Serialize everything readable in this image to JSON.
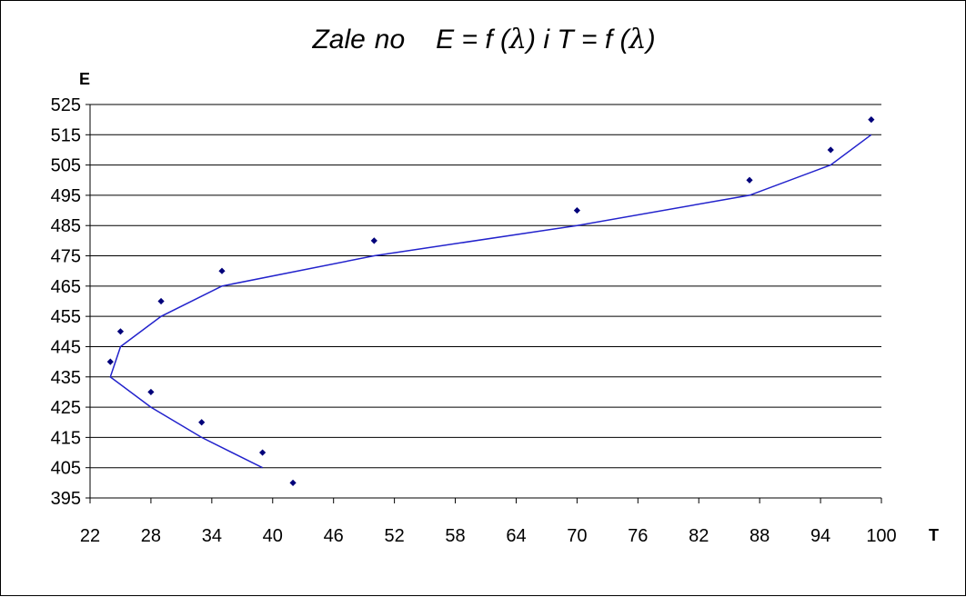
{
  "chart_data": {
    "type": "scatter",
    "title": {
      "part1": "Zale",
      "part2": "no",
      "part3": "E = f (",
      "lambda1": "λ",
      "part4": ") i T =  f (",
      "lambda2": "λ",
      "part5": ")"
    },
    "xlabel": "T",
    "ylabel": "E",
    "xlim": [
      22,
      100
    ],
    "ylim": [
      395,
      525
    ],
    "x_ticks": [
      "22",
      "28",
      "34",
      "40",
      "46",
      "52",
      "58",
      "64",
      "70",
      "76",
      "82",
      "88",
      "94",
      "100"
    ],
    "y_ticks": [
      "525",
      "515",
      "505",
      "495",
      "485",
      "475",
      "465",
      "455",
      "445",
      "435",
      "425",
      "415",
      "405",
      "395"
    ],
    "grid": "horizontal",
    "legend": "none",
    "colors": {
      "series": "#2222cc",
      "marker": "#00007a"
    },
    "series": [
      {
        "type": "scatter",
        "points": [
          [
            42,
            400
          ],
          [
            39,
            410
          ],
          [
            33,
            420
          ],
          [
            28,
            430
          ],
          [
            24,
            440
          ],
          [
            25,
            450
          ],
          [
            29,
            460
          ],
          [
            35,
            470
          ],
          [
            50,
            480
          ],
          [
            70,
            490
          ],
          [
            87,
            500
          ],
          [
            95,
            510
          ],
          [
            99,
            520
          ]
        ]
      },
      {
        "type": "line",
        "points": [
          [
            39,
            405
          ],
          [
            33,
            415
          ],
          [
            28,
            425
          ],
          [
            24,
            435
          ],
          [
            25,
            445
          ],
          [
            29,
            455
          ],
          [
            35,
            465
          ],
          [
            50,
            475
          ],
          [
            70,
            485
          ],
          [
            87,
            495
          ],
          [
            95,
            505
          ],
          [
            99,
            515
          ]
        ]
      }
    ]
  }
}
